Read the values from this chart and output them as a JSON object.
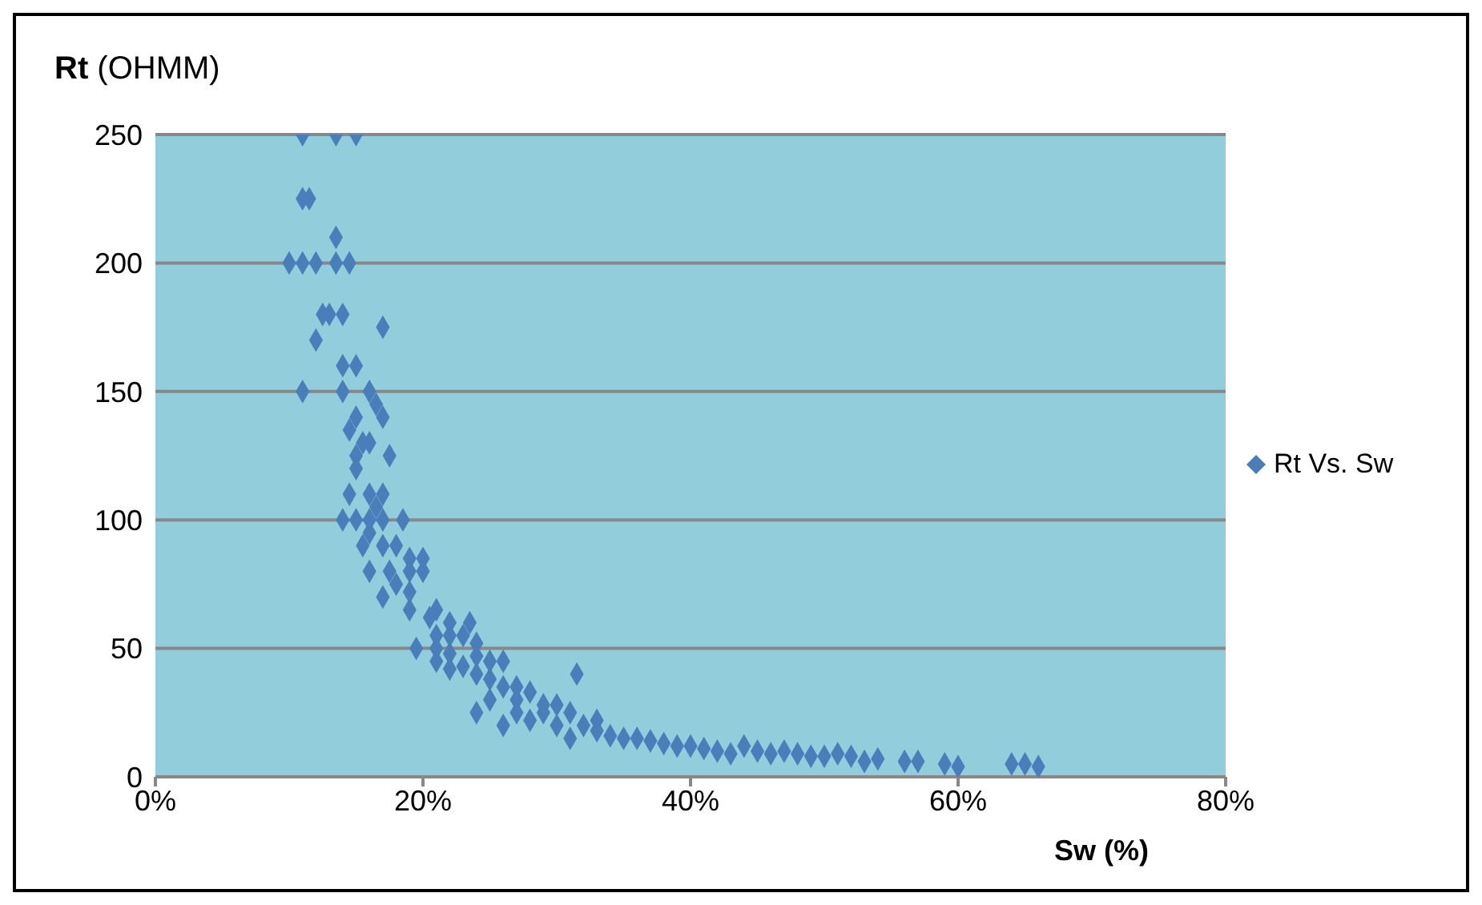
{
  "chart_data": {
    "type": "scatter",
    "xlabel": "Sw (%)",
    "ylabel": "Rt (OHMM)",
    "xlim": [
      0,
      80
    ],
    "xticks": [
      {
        "value": 0,
        "label": "0%"
      },
      {
        "value": 20,
        "label": "20%"
      },
      {
        "value": 40,
        "label": "40%"
      },
      {
        "value": 60,
        "label": "60%"
      },
      {
        "value": 80,
        "label": "80%"
      }
    ],
    "ylim": [
      0,
      250
    ],
    "yticks": [
      0,
      50,
      100,
      150,
      200,
      250
    ],
    "grid": "y",
    "legend": "right",
    "marker": "diamond",
    "series": [
      {
        "name": "Rt Vs. Sw",
        "color": "#4a7ebb",
        "x": [
          11,
          13.5,
          15,
          11,
          11.5,
          13.5,
          10,
          11,
          12,
          13.5,
          14.5,
          13,
          14,
          12.5,
          17,
          12,
          11,
          14,
          15,
          14,
          16,
          16.5,
          15,
          17,
          14.5,
          15.5,
          16,
          17.5,
          15,
          15,
          14.5,
          16,
          17,
          16.5,
          14,
          15,
          16,
          17,
          18.5,
          16,
          15.5,
          17,
          18,
          19,
          20,
          16,
          17.5,
          19,
          20,
          18,
          17,
          19,
          19,
          20.5,
          21,
          22,
          23.5,
          21,
          22,
          23,
          24,
          19.5,
          21,
          22,
          24,
          25,
          26,
          21,
          23,
          22,
          24,
          25,
          26,
          27,
          28,
          25,
          27,
          29,
          30,
          31,
          24,
          26,
          28,
          30,
          32,
          31.5,
          33,
          29,
          27,
          31,
          33,
          34,
          35,
          36,
          37,
          38,
          39,
          40,
          41,
          42,
          43,
          44,
          45,
          46,
          47,
          48,
          49,
          50,
          51,
          52,
          53,
          54,
          56,
          57,
          59,
          60,
          64,
          65,
          66
        ],
        "values": [
          250,
          250,
          250,
          225,
          225,
          210,
          200,
          200,
          200,
          200,
          200,
          180,
          180,
          180,
          175,
          170,
          150,
          160,
          160,
          150,
          150,
          145,
          140,
          140,
          135,
          130,
          130,
          125,
          125,
          120,
          110,
          110,
          110,
          105,
          100,
          100,
          100,
          100,
          100,
          95,
          90,
          90,
          90,
          85,
          85,
          80,
          80,
          80,
          80,
          75,
          70,
          72,
          65,
          62,
          65,
          60,
          60,
          55,
          55,
          55,
          52,
          50,
          50,
          48,
          47,
          45,
          45,
          45,
          43,
          42,
          40,
          38,
          35,
          35,
          33,
          30,
          30,
          28,
          28,
          25,
          25,
          20,
          22,
          20,
          20,
          40,
          22,
          25,
          25,
          15,
          18,
          16,
          15,
          15,
          14,
          13,
          12,
          12,
          11,
          10,
          9,
          12,
          10,
          9,
          10,
          9,
          8,
          8,
          9,
          8,
          6,
          7,
          6,
          6,
          5,
          4,
          5,
          5,
          4
        ]
      }
    ]
  }
}
